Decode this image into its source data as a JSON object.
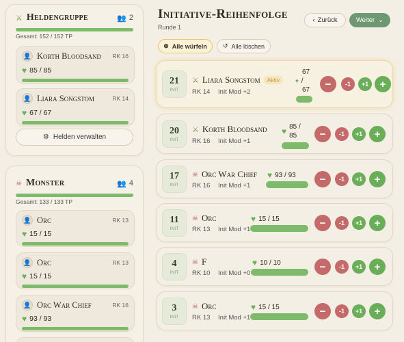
{
  "heroes": {
    "title": "Heldengruppe",
    "count": "2",
    "total": "Gesamt: 152 / 152 TP",
    "items": [
      {
        "name": "Korth Bloodsand",
        "rk": "RK 16",
        "hp": "85 / 85"
      },
      {
        "name": "Liara Songstom",
        "rk": "RK 14",
        "hp": "67 / 67"
      }
    ],
    "manage_label": "Helden verwalten"
  },
  "monsters": {
    "title": "Monster",
    "count": "4",
    "total": "Gesamt: 133 / 133 TP",
    "items": [
      {
        "name": "Orc",
        "rk": "RK 13",
        "hp": "15 / 15"
      },
      {
        "name": "Orc",
        "rk": "RK 13",
        "hp": "15 / 15"
      },
      {
        "name": "Orc War Chief",
        "rk": "RK 16",
        "hp": "93 / 93"
      }
    ]
  },
  "main": {
    "title": "Initiative-Reihenfolge",
    "round": "Runde 1",
    "back_label": "Zurück",
    "next_label": "Weiter",
    "roll_all_label": "Alle würfeln",
    "clear_all_label": "Alle löschen",
    "init_label": "INIT",
    "active_badge": "Aktiv",
    "rows": [
      {
        "init": "21",
        "name": "Liara Songstom",
        "rk": "RK 14",
        "mod": "Init Mod +2",
        "hp_top": "67",
        "hp_sep": "/",
        "hp_bottom": "67",
        "type": "hero",
        "active": true
      },
      {
        "init": "20",
        "name": "Korth Bloodsand",
        "rk": "RK 16",
        "mod": "Init Mod +1",
        "hp_top": "85 /",
        "hp_bottom": "85",
        "type": "hero"
      },
      {
        "init": "17",
        "name": "Orc War Chief",
        "rk": "RK 16",
        "mod": "Init Mod +1",
        "hp": "93 / 93",
        "type": "monster"
      },
      {
        "init": "11",
        "name": "Orc",
        "rk": "RK 13",
        "mod": "Init Mod +1",
        "hp": "15 / 15",
        "type": "monster"
      },
      {
        "init": "4",
        "name": "F",
        "rk": "RK 10",
        "mod": "Init Mod +0",
        "hp": "10 / 10",
        "type": "monster"
      },
      {
        "init": "3",
        "name": "Orc",
        "rk": "RK 13",
        "mod": "Init Mod +1",
        "hp": "15 / 15",
        "type": "monster"
      }
    ],
    "controls": {
      "big_minus": "−",
      "minus1": "-1",
      "plus1": "+1",
      "big_plus": "+"
    }
  }
}
